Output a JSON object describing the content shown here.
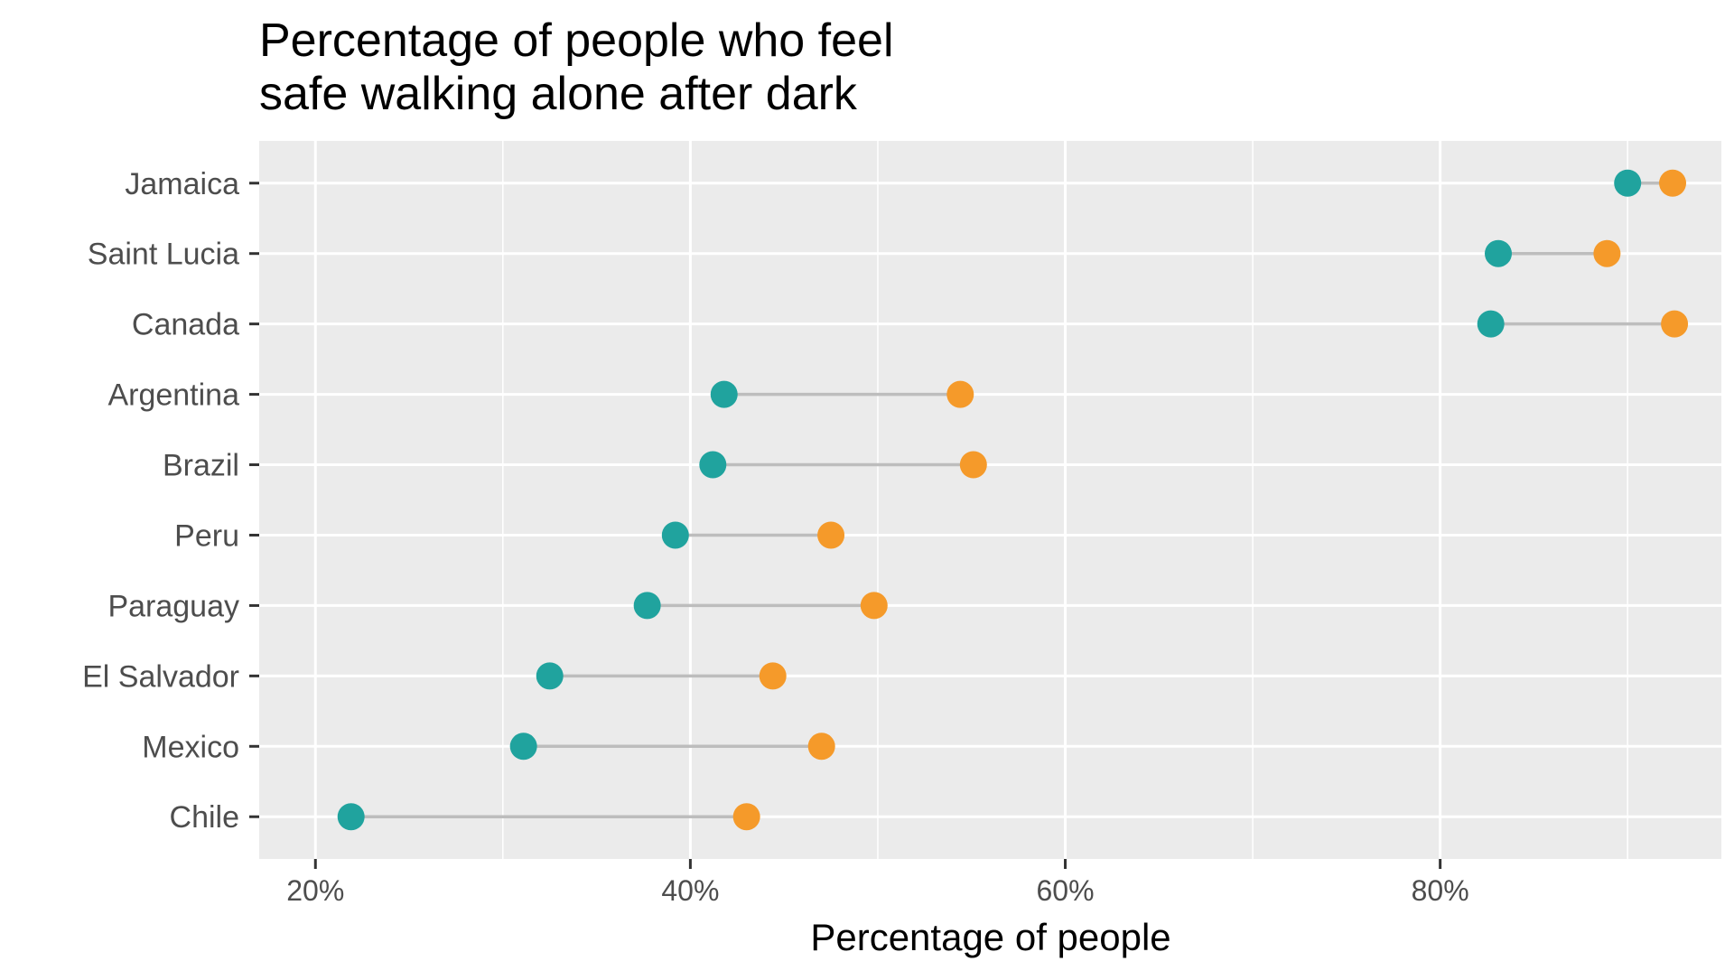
{
  "chart_data": {
    "type": "dumbbell",
    "title": "Percentage of people who feel\nsafe walking alone after dark",
    "title_lines": [
      "Percentage of people who feel",
      "safe walking alone after dark"
    ],
    "xlabel": "Percentage of people",
    "ylabel": "",
    "xlim": [
      17,
      95
    ],
    "x_ticks": [
      20,
      40,
      60,
      80
    ],
    "x_tick_labels": [
      "20%",
      "40%",
      "60%",
      "80%"
    ],
    "grid": true,
    "categories": [
      "Jamaica",
      "Saint Lucia",
      "Canada",
      "Argentina",
      "Brazil",
      "Peru",
      "Paraguay",
      "El Salvador",
      "Mexico",
      "Chile"
    ],
    "series": [
      {
        "color": "#20a39e",
        "values": [
          90.0,
          83.1,
          82.7,
          41.8,
          41.2,
          39.2,
          37.7,
          32.5,
          31.1,
          21.9
        ]
      },
      {
        "color": "#f59a2a",
        "values": [
          92.4,
          88.9,
          92.5,
          54.4,
          55.1,
          47.5,
          49.8,
          44.4,
          47.0,
          43.0
        ]
      }
    ],
    "colors": {
      "panel_background": "#ebebeb",
      "grid": "#ffffff",
      "segment": "#bdbdbd",
      "tick": "#333333"
    }
  }
}
